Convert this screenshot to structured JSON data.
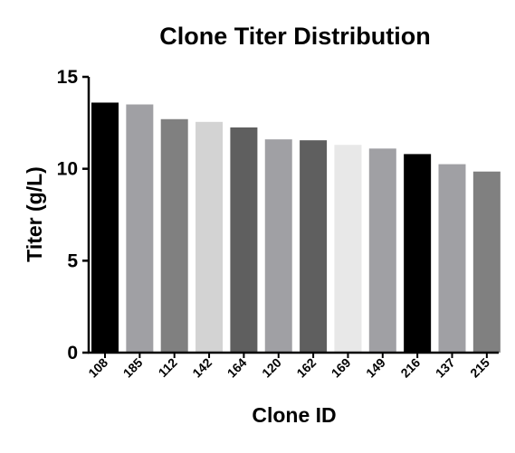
{
  "chart_data": {
    "type": "bar",
    "title": "Clone Titer Distribution",
    "xlabel": "Clone ID",
    "ylabel": "Titer (g/L)",
    "ylim": [
      0,
      15
    ],
    "yticks": [
      0,
      5,
      10,
      15
    ],
    "grid": false,
    "categories": [
      "108",
      "185",
      "112",
      "142",
      "164",
      "120",
      "162",
      "169",
      "149",
      "216",
      "137",
      "215"
    ],
    "values": [
      13.6,
      13.5,
      12.7,
      12.55,
      12.25,
      11.6,
      11.55,
      11.3,
      11.1,
      10.8,
      10.25,
      9.85
    ],
    "colors": [
      "#000000",
      "#a0a0a4",
      "#808080",
      "#d3d3d3",
      "#5f5f5f",
      "#a0a0a4",
      "#5f5f5f",
      "#e8e8e8",
      "#a0a0a4",
      "#000000",
      "#a0a0a4",
      "#808080"
    ]
  }
}
